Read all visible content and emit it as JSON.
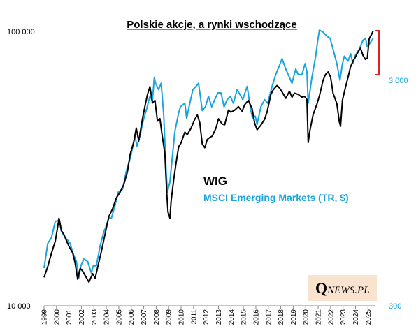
{
  "chart_data": {
    "type": "line",
    "title": "Polskie akcje, a rynki wschodzące",
    "x_years": [
      "1999",
      "2000",
      "2001",
      "2002",
      "2003",
      "2004",
      "2005",
      "2006",
      "2007",
      "2008",
      "2009",
      "2010",
      "2011",
      "2012",
      "2013",
      "2014",
      "2015",
      "2016",
      "2017",
      "2018",
      "2019",
      "2020",
      "2021",
      "2022",
      "2023",
      "2024",
      "2025"
    ],
    "left_axis": {
      "scale": "log",
      "ylim": [
        10000,
        100000
      ],
      "tick_labels": [
        "100 000",
        "10 000"
      ]
    },
    "right_axis": {
      "scale": "log",
      "ylim": [
        300,
        3000
      ],
      "tick_labels": [
        "3 000",
        "300"
      ]
    },
    "series": [
      {
        "name": "WIG",
        "color": "#000000",
        "axis": "left",
        "points": [
          [
            1999.0,
            12700
          ],
          [
            1999.3,
            13900
          ],
          [
            1999.6,
            15600
          ],
          [
            1999.9,
            17200
          ],
          [
            2000.1,
            19500
          ],
          [
            2000.2,
            20900
          ],
          [
            2000.4,
            18800
          ],
          [
            2000.6,
            18200
          ],
          [
            2000.8,
            17300
          ],
          [
            2001.0,
            16500
          ],
          [
            2001.3,
            15600
          ],
          [
            2001.5,
            14300
          ],
          [
            2001.7,
            12500
          ],
          [
            2001.9,
            13700
          ],
          [
            2002.1,
            13400
          ],
          [
            2002.3,
            12900
          ],
          [
            2002.6,
            12200
          ],
          [
            2002.9,
            13100
          ],
          [
            2003.1,
            12600
          ],
          [
            2003.3,
            13800
          ],
          [
            2003.6,
            15800
          ],
          [
            2003.9,
            18300
          ],
          [
            2004.2,
            21200
          ],
          [
            2004.5,
            22600
          ],
          [
            2004.8,
            24800
          ],
          [
            2005.1,
            26000
          ],
          [
            2005.4,
            27700
          ],
          [
            2005.7,
            31000
          ],
          [
            2005.9,
            35600
          ],
          [
            2006.2,
            39700
          ],
          [
            2006.4,
            44600
          ],
          [
            2006.6,
            40000
          ],
          [
            2006.9,
            48200
          ],
          [
            2007.1,
            53600
          ],
          [
            2007.3,
            59100
          ],
          [
            2007.5,
            63200
          ],
          [
            2007.7,
            55100
          ],
          [
            2007.9,
            56300
          ],
          [
            2008.1,
            47300
          ],
          [
            2008.3,
            48300
          ],
          [
            2008.5,
            41300
          ],
          [
            2008.7,
            36000
          ],
          [
            2008.85,
            25800
          ],
          [
            2008.95,
            22000
          ],
          [
            2009.1,
            20900
          ],
          [
            2009.2,
            24200
          ],
          [
            2009.4,
            28700
          ],
          [
            2009.6,
            33300
          ],
          [
            2009.8,
            38100
          ],
          [
            2010.0,
            39400
          ],
          [
            2010.3,
            43100
          ],
          [
            2010.5,
            42200
          ],
          [
            2010.8,
            44600
          ],
          [
            2011.1,
            48000
          ],
          [
            2011.3,
            49800
          ],
          [
            2011.5,
            46700
          ],
          [
            2011.7,
            39000
          ],
          [
            2011.9,
            37800
          ],
          [
            2012.1,
            40500
          ],
          [
            2012.3,
            41200
          ],
          [
            2012.5,
            41700
          ],
          [
            2012.8,
            44600
          ],
          [
            2013.0,
            48200
          ],
          [
            2013.3,
            46100
          ],
          [
            2013.5,
            45900
          ],
          [
            2013.8,
            51900
          ],
          [
            2014.0,
            51000
          ],
          [
            2014.3,
            51900
          ],
          [
            2014.6,
            53400
          ],
          [
            2014.9,
            51400
          ],
          [
            2015.1,
            54300
          ],
          [
            2015.4,
            56300
          ],
          [
            2015.7,
            52500
          ],
          [
            2015.9,
            46500
          ],
          [
            2016.1,
            44000
          ],
          [
            2016.4,
            45700
          ],
          [
            2016.7,
            48000
          ],
          [
            2016.9,
            51000
          ],
          [
            2017.2,
            59100
          ],
          [
            2017.4,
            61600
          ],
          [
            2017.7,
            63800
          ],
          [
            2017.9,
            62500
          ],
          [
            2018.1,
            60500
          ],
          [
            2018.4,
            57300
          ],
          [
            2018.7,
            60800
          ],
          [
            2018.9,
            57800
          ],
          [
            2019.1,
            59800
          ],
          [
            2019.4,
            59200
          ],
          [
            2019.7,
            57800
          ],
          [
            2019.9,
            58300
          ],
          [
            2020.1,
            56700
          ],
          [
            2020.2,
            39500
          ],
          [
            2020.35,
            43900
          ],
          [
            2020.6,
            50000
          ],
          [
            2020.9,
            54500
          ],
          [
            2021.1,
            58400
          ],
          [
            2021.4,
            66800
          ],
          [
            2021.6,
            70100
          ],
          [
            2021.8,
            71500
          ],
          [
            2022.0,
            68600
          ],
          [
            2022.2,
            59800
          ],
          [
            2022.5,
            54800
          ],
          [
            2022.7,
            47100
          ],
          [
            2022.8,
            45300
          ],
          [
            2022.95,
            56400
          ],
          [
            2023.2,
            63000
          ],
          [
            2023.4,
            68400
          ],
          [
            2023.6,
            74700
          ],
          [
            2023.8,
            78400
          ],
          [
            2023.95,
            80400
          ],
          [
            2024.2,
            84600
          ],
          [
            2024.4,
            87300
          ],
          [
            2024.6,
            82200
          ],
          [
            2024.8,
            79500
          ],
          [
            2024.95,
            80400
          ],
          [
            2025.1,
            94600
          ],
          [
            2025.3,
            98500
          ],
          [
            2025.42,
            101000
          ]
        ]
      },
      {
        "name": "MSCI Emerging Markets (TR, $)",
        "color": "#1aa3dc",
        "axis": "right",
        "points": [
          [
            1999.0,
            412
          ],
          [
            1999.3,
            507
          ],
          [
            1999.6,
            533
          ],
          [
            1999.9,
            610
          ],
          [
            2000.2,
            617
          ],
          [
            2000.4,
            560
          ],
          [
            2000.7,
            533
          ],
          [
            2000.9,
            520
          ],
          [
            2001.1,
            507
          ],
          [
            2001.3,
            470
          ],
          [
            2001.6,
            435
          ],
          [
            2001.8,
            380
          ],
          [
            2001.95,
            420
          ],
          [
            2002.2,
            445
          ],
          [
            2002.5,
            435
          ],
          [
            2002.8,
            395
          ],
          [
            2002.95,
            420
          ],
          [
            2003.2,
            420
          ],
          [
            2003.5,
            496
          ],
          [
            2003.8,
            560
          ],
          [
            2003.95,
            580
          ],
          [
            2004.2,
            630
          ],
          [
            2004.4,
            625
          ],
          [
            2004.7,
            700
          ],
          [
            2004.95,
            780
          ],
          [
            2005.3,
            800
          ],
          [
            2005.6,
            930
          ],
          [
            2005.95,
            1050
          ],
          [
            2006.3,
            1250
          ],
          [
            2006.45,
            1150
          ],
          [
            2006.7,
            1250
          ],
          [
            2006.95,
            1420
          ],
          [
            2007.2,
            1550
          ],
          [
            2007.5,
            1750
          ],
          [
            2007.7,
            1680
          ],
          [
            2007.85,
            2050
          ],
          [
            2007.95,
            1950
          ],
          [
            2008.2,
            1850
          ],
          [
            2008.4,
            1950
          ],
          [
            2008.6,
            1500
          ],
          [
            2008.8,
            930
          ],
          [
            2008.9,
            780
          ],
          [
            2009.1,
            850
          ],
          [
            2009.3,
            1050
          ],
          [
            2009.5,
            1300
          ],
          [
            2009.8,
            1520
          ],
          [
            2009.95,
            1600
          ],
          [
            2010.3,
            1650
          ],
          [
            2010.45,
            1450
          ],
          [
            2010.7,
            1650
          ],
          [
            2010.95,
            1850
          ],
          [
            2011.2,
            1900
          ],
          [
            2011.4,
            1950
          ],
          [
            2011.7,
            1550
          ],
          [
            2011.95,
            1600
          ],
          [
            2012.2,
            1750
          ],
          [
            2012.45,
            1600
          ],
          [
            2012.7,
            1700
          ],
          [
            2012.95,
            1800
          ],
          [
            2013.2,
            1800
          ],
          [
            2013.45,
            1600
          ],
          [
            2013.7,
            1700
          ],
          [
            2013.95,
            1750
          ],
          [
            2014.2,
            1650
          ],
          [
            2014.5,
            1850
          ],
          [
            2014.8,
            1750
          ],
          [
            2014.95,
            1700
          ],
          [
            2015.3,
            1900
          ],
          [
            2015.6,
            1550
          ],
          [
            2015.75,
            1450
          ],
          [
            2015.95,
            1480
          ],
          [
            2016.1,
            1380
          ],
          [
            2016.4,
            1600
          ],
          [
            2016.7,
            1700
          ],
          [
            2016.95,
            1650
          ],
          [
            2017.3,
            1900
          ],
          [
            2017.6,
            2100
          ],
          [
            2017.95,
            2300
          ],
          [
            2018.1,
            2400
          ],
          [
            2018.4,
            2200
          ],
          [
            2018.7,
            2050
          ],
          [
            2018.9,
            1950
          ],
          [
            2019.2,
            2200
          ],
          [
            2019.4,
            2100
          ],
          [
            2019.7,
            2100
          ],
          [
            2019.95,
            2300
          ],
          [
            2020.1,
            2150
          ],
          [
            2020.2,
            1650
          ],
          [
            2020.5,
            2050
          ],
          [
            2020.8,
            2450
          ],
          [
            2020.95,
            2750
          ],
          [
            2021.1,
            3050
          ],
          [
            2021.4,
            3000
          ],
          [
            2021.7,
            2900
          ],
          [
            2021.95,
            2850
          ],
          [
            2022.2,
            2600
          ],
          [
            2022.5,
            2300
          ],
          [
            2022.75,
            2000
          ],
          [
            2022.95,
            2300
          ],
          [
            2023.1,
            2450
          ],
          [
            2023.4,
            2350
          ],
          [
            2023.6,
            2500
          ],
          [
            2023.8,
            2300
          ],
          [
            2023.95,
            2450
          ],
          [
            2024.3,
            2600
          ],
          [
            2024.6,
            2800
          ],
          [
            2024.8,
            2850
          ],
          [
            2024.95,
            2650
          ],
          [
            2025.2,
            2750
          ],
          [
            2025.42,
            2850
          ]
        ]
      }
    ],
    "legend": [
      "WIG",
      "MSCI Emerging Markets (TR, $)"
    ],
    "annotation": "red bracket between WIG and MSCI lines at the end of the period",
    "grid": false,
    "source_logo": {
      "first": "Q",
      "rest": "NEWS.PL"
    }
  }
}
